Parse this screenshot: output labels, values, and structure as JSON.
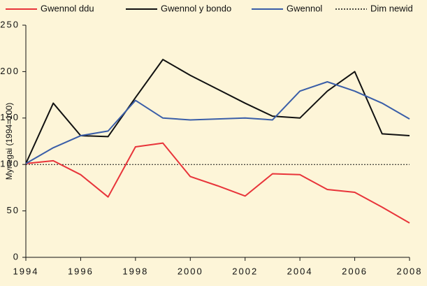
{
  "chart_data": {
    "type": "line",
    "x": [
      1994,
      1995,
      1996,
      1997,
      1998,
      1999,
      2000,
      2001,
      2002,
      2003,
      2004,
      2005,
      2006,
      2007,
      2008
    ],
    "series": [
      {
        "name": "Gwennol ddu",
        "color": "#e8343a",
        "values": [
          101,
          104,
          89,
          65,
          119,
          123,
          87,
          77,
          66,
          90,
          89,
          73,
          70,
          54,
          37
        ]
      },
      {
        "name": "Gwennol y bondo",
        "color": "#111111",
        "values": [
          101,
          166,
          131,
          130,
          172,
          213,
          196,
          181,
          166,
          152,
          150,
          179,
          200,
          133,
          131
        ]
      },
      {
        "name": "Gwennol",
        "color": "#3a5ea8",
        "values": [
          101,
          118,
          131,
          136,
          169,
          150,
          148,
          149,
          150,
          148,
          179,
          189,
          179,
          166,
          149
        ]
      }
    ],
    "reference_line": {
      "name": "Dim newid",
      "value": 100,
      "color": "#111111",
      "style": "dotted"
    },
    "ylabel": "Mynegai (1994=100)",
    "xlim": [
      1994,
      2008
    ],
    "xticks": [
      1994,
      1996,
      1998,
      2000,
      2002,
      2004,
      2006,
      2008
    ],
    "ylim": [
      0,
      250
    ],
    "yticks": [
      0,
      50,
      100,
      150,
      200,
      250
    ],
    "legend": "top"
  }
}
